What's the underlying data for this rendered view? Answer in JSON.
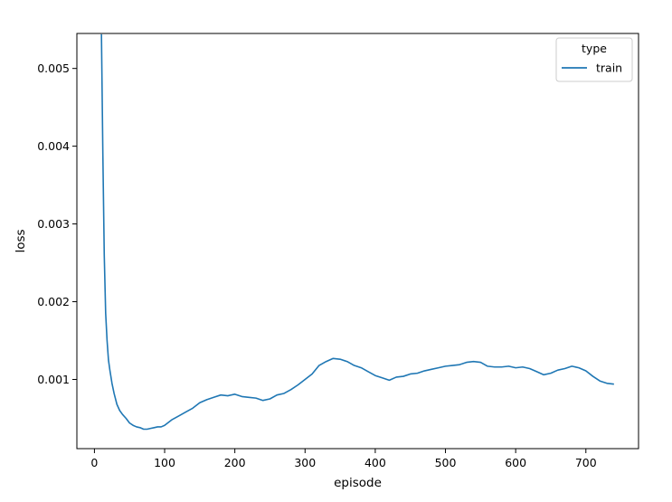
{
  "chart_data": {
    "type": "line",
    "xlabel": "episode",
    "ylabel": "loss",
    "xlim": [
      -25,
      775
    ],
    "ylim": [
      0.00011,
      0.00545
    ],
    "xticks": [
      0,
      100,
      200,
      300,
      400,
      500,
      600,
      700
    ],
    "yticks": [
      0.001,
      0.002,
      0.003,
      0.004,
      0.005
    ],
    "x_tick_labels": [
      "0",
      "100",
      "200",
      "300",
      "400",
      "500",
      "600",
      "700"
    ],
    "y_tick_labels": [
      "0.001",
      "0.002",
      "0.003",
      "0.004",
      "0.005"
    ],
    "grid": false,
    "legend": {
      "title": "type",
      "placement": "top-right",
      "entries": [
        "train"
      ]
    },
    "series": [
      {
        "name": "train",
        "color": "#1f77b4",
        "x": [
          10,
          12,
          14,
          16,
          18,
          20,
          22,
          25,
          28,
          32,
          36,
          40,
          45,
          50,
          55,
          60,
          65,
          70,
          75,
          80,
          85,
          90,
          95,
          100,
          110,
          120,
          130,
          140,
          150,
          160,
          170,
          180,
          190,
          200,
          210,
          220,
          230,
          240,
          250,
          260,
          270,
          280,
          290,
          300,
          310,
          320,
          330,
          340,
          350,
          360,
          370,
          380,
          390,
          400,
          410,
          420,
          430,
          440,
          450,
          460,
          470,
          480,
          490,
          500,
          510,
          520,
          530,
          540,
          550,
          560,
          570,
          580,
          590,
          600,
          610,
          620,
          630,
          640,
          650,
          660,
          670,
          680,
          690,
          700,
          710,
          720,
          730,
          740
        ],
        "y": [
          0.00544,
          0.0039,
          0.0026,
          0.00185,
          0.0015,
          0.00125,
          0.00112,
          0.00095,
          0.00082,
          0.00068,
          0.0006,
          0.00055,
          0.0005,
          0.00044,
          0.00041,
          0.00039,
          0.00038,
          0.00036,
          0.00036,
          0.00037,
          0.00038,
          0.00039,
          0.00039,
          0.00041,
          0.00048,
          0.00053,
          0.00058,
          0.00063,
          0.0007,
          0.00074,
          0.00077,
          0.0008,
          0.00079,
          0.00081,
          0.00078,
          0.00077,
          0.00076,
          0.00073,
          0.00075,
          0.0008,
          0.00082,
          0.00087,
          0.00093,
          0.001,
          0.00107,
          0.00118,
          0.00123,
          0.00127,
          0.00126,
          0.00123,
          0.00118,
          0.00115,
          0.0011,
          0.00105,
          0.00102,
          0.00099,
          0.00103,
          0.00104,
          0.00107,
          0.00108,
          0.00111,
          0.00113,
          0.00115,
          0.00117,
          0.00118,
          0.00119,
          0.00122,
          0.00123,
          0.00122,
          0.00117,
          0.00116,
          0.00116,
          0.00117,
          0.00115,
          0.00116,
          0.00114,
          0.0011,
          0.00106,
          0.00108,
          0.00112,
          0.00114,
          0.00117,
          0.00115,
          0.00111,
          0.00104,
          0.00098,
          0.00095,
          0.00094
        ]
      }
    ]
  }
}
